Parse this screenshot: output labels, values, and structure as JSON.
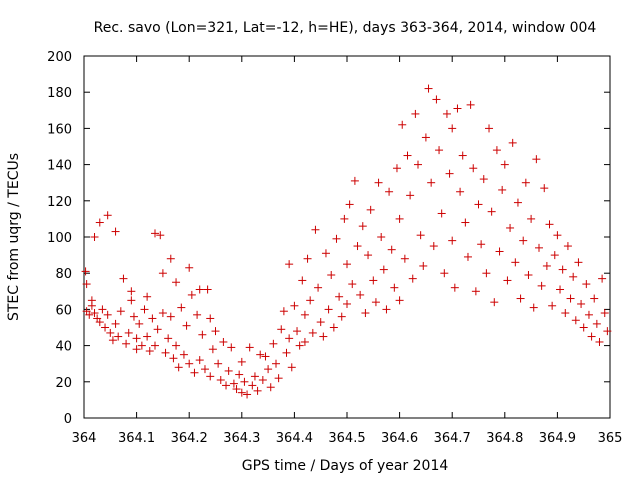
{
  "chart_data": {
    "type": "scatter",
    "title": "Rec. savo (Lon=321, Lat=-12, h=HE), days 363-364, 2014, window 004",
    "xlabel": "GPS time / Days of year 2014",
    "ylabel": "STEC from uqrg / TECUs",
    "xlim": [
      364,
      365
    ],
    "ylim": [
      0,
      200
    ],
    "x_ticks": [
      364,
      364.1,
      364.2,
      364.3,
      364.4,
      364.5,
      364.6,
      364.7,
      364.8,
      364.9,
      365
    ],
    "x_tick_labels": [
      "364",
      "364.1",
      "364.2",
      "364.3",
      "364.4",
      "364.5",
      "364.6",
      "364.7",
      "364.8",
      "364.9",
      "365"
    ],
    "y_ticks": [
      0,
      20,
      40,
      60,
      80,
      100,
      120,
      140,
      160,
      180,
      200
    ],
    "y_tick_labels": [
      "0",
      "20",
      "40",
      "60",
      "80",
      "100",
      "120",
      "140",
      "160",
      "180",
      "200"
    ],
    "grid": false,
    "marker": "plus",
    "color": "#cc0000",
    "series": [
      {
        "points": [
          [
            364.003,
            81
          ],
          [
            364.005,
            74
          ],
          [
            364.005,
            59
          ],
          [
            364.01,
            57
          ],
          [
            364.015,
            65
          ],
          [
            364.015,
            62
          ],
          [
            364.02,
            100
          ],
          [
            364.02,
            58
          ],
          [
            364.025,
            55
          ],
          [
            364.03,
            108
          ],
          [
            364.03,
            53
          ],
          [
            364.035,
            60
          ],
          [
            364.04,
            50
          ],
          [
            364.045,
            112
          ],
          [
            364.045,
            57
          ],
          [
            364.05,
            47
          ],
          [
            364.055,
            43
          ],
          [
            364.06,
            103
          ],
          [
            364.06,
            52
          ],
          [
            364.065,
            45
          ],
          [
            364.07,
            59
          ],
          [
            364.075,
            77
          ],
          [
            364.08,
            41
          ],
          [
            364.085,
            47
          ],
          [
            364.09,
            70
          ],
          [
            364.09,
            65
          ],
          [
            364.095,
            56
          ],
          [
            364.1,
            44
          ],
          [
            364.1,
            38
          ],
          [
            364.105,
            52
          ],
          [
            364.11,
            40
          ],
          [
            364.115,
            60
          ],
          [
            364.12,
            67
          ],
          [
            364.12,
            45
          ],
          [
            364.125,
            37
          ],
          [
            364.13,
            55
          ],
          [
            364.135,
            102
          ],
          [
            364.135,
            40
          ],
          [
            364.14,
            49
          ],
          [
            364.145,
            101
          ],
          [
            364.15,
            80
          ],
          [
            364.15,
            58
          ],
          [
            364.155,
            36
          ],
          [
            364.16,
            44
          ],
          [
            364.165,
            88
          ],
          [
            364.165,
            56
          ],
          [
            364.17,
            33
          ],
          [
            364.175,
            75
          ],
          [
            364.175,
            40
          ],
          [
            364.18,
            28
          ],
          [
            364.185,
            61
          ],
          [
            364.19,
            35
          ],
          [
            364.195,
            51
          ],
          [
            364.2,
            83
          ],
          [
            364.2,
            30
          ],
          [
            364.205,
            68
          ],
          [
            364.21,
            25
          ],
          [
            364.215,
            57
          ],
          [
            364.22,
            71
          ],
          [
            364.22,
            32
          ],
          [
            364.225,
            46
          ],
          [
            364.23,
            27
          ],
          [
            364.235,
            71
          ],
          [
            364.24,
            55
          ],
          [
            364.24,
            23
          ],
          [
            364.245,
            38
          ],
          [
            364.25,
            48
          ],
          [
            364.255,
            30
          ],
          [
            364.26,
            21
          ],
          [
            364.265,
            42
          ],
          [
            364.27,
            18
          ],
          [
            364.275,
            26
          ],
          [
            364.28,
            39
          ],
          [
            364.285,
            19
          ],
          [
            364.29,
            16
          ],
          [
            364.295,
            24
          ],
          [
            364.3,
            31
          ],
          [
            364.3,
            14
          ],
          [
            364.305,
            20
          ],
          [
            364.31,
            13
          ],
          [
            364.315,
            39
          ],
          [
            364.32,
            18
          ],
          [
            364.325,
            23
          ],
          [
            364.33,
            15
          ],
          [
            364.335,
            35
          ],
          [
            364.34,
            21
          ],
          [
            364.345,
            34
          ],
          [
            364.35,
            27
          ],
          [
            364.355,
            17
          ],
          [
            364.36,
            41
          ],
          [
            364.365,
            30
          ],
          [
            364.37,
            22
          ],
          [
            364.375,
            49
          ],
          [
            364.38,
            59
          ],
          [
            364.385,
            36
          ],
          [
            364.39,
            85
          ],
          [
            364.39,
            44
          ],
          [
            364.395,
            28
          ],
          [
            364.4,
            62
          ],
          [
            364.405,
            48
          ],
          [
            364.41,
            40
          ],
          [
            364.415,
            76
          ],
          [
            364.42,
            57
          ],
          [
            364.42,
            42
          ],
          [
            364.425,
            88
          ],
          [
            364.43,
            65
          ],
          [
            364.435,
            47
          ],
          [
            364.44,
            104
          ],
          [
            364.445,
            72
          ],
          [
            364.45,
            53
          ],
          [
            364.455,
            45
          ],
          [
            364.46,
            91
          ],
          [
            364.465,
            60
          ],
          [
            364.47,
            79
          ],
          [
            364.475,
            50
          ],
          [
            364.48,
            99
          ],
          [
            364.485,
            67
          ],
          [
            364.49,
            56
          ],
          [
            364.495,
            110
          ],
          [
            364.5,
            85
          ],
          [
            364.5,
            63
          ],
          [
            364.505,
            118
          ],
          [
            364.51,
            74
          ],
          [
            364.515,
            131
          ],
          [
            364.52,
            95
          ],
          [
            364.525,
            68
          ],
          [
            364.53,
            106
          ],
          [
            364.535,
            58
          ],
          [
            364.54,
            90
          ],
          [
            364.545,
            115
          ],
          [
            364.55,
            76
          ],
          [
            364.555,
            64
          ],
          [
            364.56,
            130
          ],
          [
            364.565,
            100
          ],
          [
            364.57,
            82
          ],
          [
            364.575,
            60
          ],
          [
            364.58,
            125
          ],
          [
            364.585,
            93
          ],
          [
            364.59,
            72
          ],
          [
            364.595,
            138
          ],
          [
            364.6,
            110
          ],
          [
            364.6,
            65
          ],
          [
            364.605,
            162
          ],
          [
            364.61,
            88
          ],
          [
            364.615,
            145
          ],
          [
            364.62,
            123
          ],
          [
            364.625,
            77
          ],
          [
            364.63,
            168
          ],
          [
            364.635,
            140
          ],
          [
            364.64,
            101
          ],
          [
            364.645,
            84
          ],
          [
            364.65,
            155
          ],
          [
            364.655,
            182
          ],
          [
            364.66,
            130
          ],
          [
            364.665,
            95
          ],
          [
            364.67,
            176
          ],
          [
            364.675,
            148
          ],
          [
            364.68,
            113
          ],
          [
            364.685,
            80
          ],
          [
            364.69,
            168
          ],
          [
            364.695,
            135
          ],
          [
            364.7,
            160
          ],
          [
            364.7,
            98
          ],
          [
            364.705,
            72
          ],
          [
            364.71,
            171
          ],
          [
            364.715,
            125
          ],
          [
            364.72,
            145
          ],
          [
            364.725,
            108
          ],
          [
            364.73,
            89
          ],
          [
            364.735,
            173
          ],
          [
            364.74,
            138
          ],
          [
            364.745,
            70
          ],
          [
            364.75,
            118
          ],
          [
            364.755,
            96
          ],
          [
            364.76,
            132
          ],
          [
            364.765,
            80
          ],
          [
            364.77,
            160
          ],
          [
            364.775,
            114
          ],
          [
            364.78,
            64
          ],
          [
            364.785,
            148
          ],
          [
            364.79,
            92
          ],
          [
            364.795,
            126
          ],
          [
            364.8,
            140
          ],
          [
            364.805,
            76
          ],
          [
            364.81,
            105
          ],
          [
            364.815,
            152
          ],
          [
            364.82,
            86
          ],
          [
            364.825,
            119
          ],
          [
            364.83,
            66
          ],
          [
            364.835,
            98
          ],
          [
            364.84,
            130
          ],
          [
            364.845,
            79
          ],
          [
            364.85,
            110
          ],
          [
            364.855,
            61
          ],
          [
            364.86,
            143
          ],
          [
            364.865,
            94
          ],
          [
            364.87,
            73
          ],
          [
            364.875,
            127
          ],
          [
            364.88,
            84
          ],
          [
            364.885,
            107
          ],
          [
            364.89,
            62
          ],
          [
            364.895,
            90
          ],
          [
            364.9,
            101
          ],
          [
            364.905,
            71
          ],
          [
            364.91,
            82
          ],
          [
            364.915,
            58
          ],
          [
            364.92,
            95
          ],
          [
            364.925,
            66
          ],
          [
            364.93,
            78
          ],
          [
            364.935,
            54
          ],
          [
            364.94,
            86
          ],
          [
            364.945,
            63
          ],
          [
            364.95,
            50
          ],
          [
            364.955,
            74
          ],
          [
            364.96,
            57
          ],
          [
            364.965,
            45
          ],
          [
            364.97,
            66
          ],
          [
            364.975,
            52
          ],
          [
            364.98,
            42
          ],
          [
            364.985,
            77
          ],
          [
            364.99,
            58
          ],
          [
            364.995,
            48
          ]
        ]
      }
    ]
  }
}
